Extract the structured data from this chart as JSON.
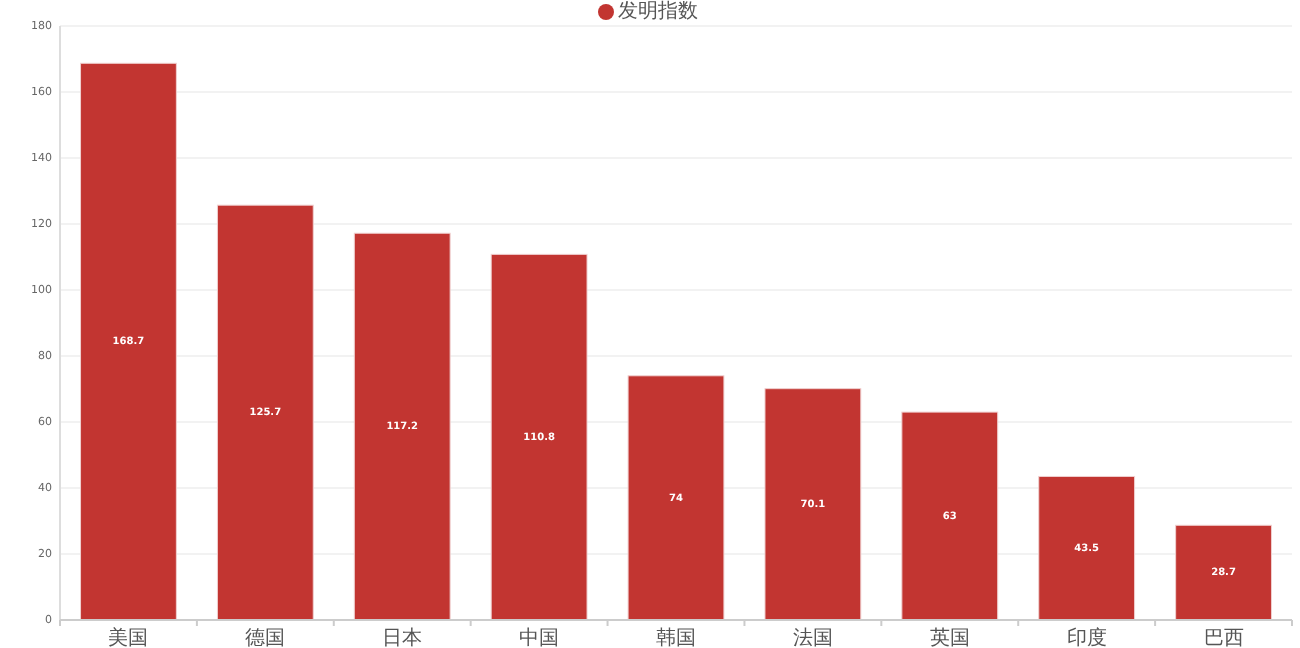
{
  "chart_data": {
    "type": "bar",
    "categories": [
      "美国",
      "德国",
      "日本",
      "中国",
      "韩国",
      "法国",
      "英国",
      "印度",
      "巴西"
    ],
    "series": [
      {
        "name": "发明指数",
        "color": "#c23531",
        "values": [
          168.7,
          125.7,
          117.2,
          110.8,
          74,
          70.1,
          63,
          43.5,
          28.7
        ]
      }
    ],
    "ylim": [
      0,
      180
    ],
    "yticks": [
      0,
      20,
      40,
      60,
      80,
      100,
      120,
      140,
      160,
      180
    ],
    "grid": "y",
    "legend": "top",
    "data_labels": true
  }
}
